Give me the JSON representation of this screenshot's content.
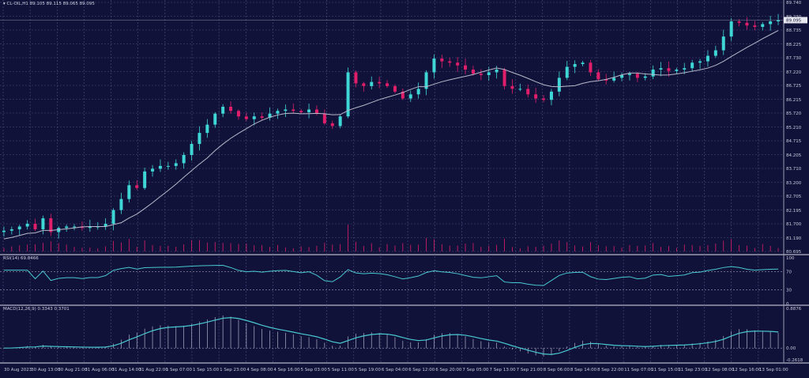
{
  "header": {
    "symbol": "CL-OIL,H1",
    "ohlc": "89.105 89.115 89.065 89.095"
  },
  "colors": {
    "background": "#11123a",
    "grid": "#4b4f80",
    "bull": "#3fd6d6",
    "bear": "#e01e6a",
    "ma": "#b8b8c8",
    "indicator": "#48c8d0"
  },
  "chart_data": [
    {
      "type": "candlestick",
      "title": "CL-OIL,H1",
      "current_price": "89.095",
      "y_ticks": [
        "89.740",
        "89.230",
        "88.735",
        "88.225",
        "87.730",
        "87.220",
        "86.725",
        "86.215",
        "85.720",
        "85.210",
        "84.715",
        "84.205",
        "83.710",
        "83.200",
        "82.705",
        "82.195",
        "81.700",
        "81.190",
        "80.695"
      ],
      "ylim": [
        80.695,
        89.74
      ],
      "x_ticks": [
        "30 Aug 2023",
        "30 Aug 13:00",
        "30 Aug 21:00",
        "31 Aug 06:00",
        "31 Aug 14:00",
        "31 Aug 22:00",
        "1 Sep 07:00",
        "1 Sep 15:00",
        "1 Sep 23:00",
        "4 Sep 08:00",
        "4 Sep 16:00",
        "5 Sep 03:00",
        "5 Sep 11:00",
        "5 Sep 19:00",
        "6 Sep 04:00",
        "6 Sep 12:00",
        "6 Sep 20:00",
        "7 Sep 05:00",
        "7 Sep 13:00",
        "7 Sep 21:00",
        "8 Sep 06:00",
        "8 Sep 14:00",
        "8 Sep 22:00",
        "11 Sep 07:00",
        "11 Sep 15:00",
        "11 Sep 23:00",
        "12 Sep 08:00",
        "12 Sep 16:00",
        "13 Sep 01:00"
      ],
      "closes": [
        81.45,
        81.5,
        81.6,
        81.7,
        81.5,
        81.9,
        81.4,
        81.55,
        81.6,
        81.6,
        81.55,
        81.6,
        81.6,
        81.7,
        82.2,
        82.6,
        83.1,
        83.0,
        83.6,
        83.7,
        83.8,
        83.8,
        83.9,
        84.2,
        84.6,
        85.0,
        85.3,
        85.7,
        85.95,
        85.8,
        85.6,
        85.5,
        85.6,
        85.55,
        85.7,
        85.8,
        85.85,
        85.8,
        85.75,
        85.85,
        85.7,
        85.35,
        85.25,
        85.6,
        87.2,
        86.8,
        86.7,
        86.85,
        86.8,
        86.7,
        86.5,
        86.25,
        86.4,
        86.6,
        87.2,
        87.7,
        87.6,
        87.55,
        87.45,
        87.3,
        87.15,
        87.1,
        87.2,
        87.3,
        86.7,
        86.6,
        86.6,
        86.4,
        86.25,
        86.2,
        86.5,
        87.0,
        87.4,
        87.5,
        87.55,
        87.2,
        86.95,
        86.9,
        87.0,
        87.1,
        87.15,
        87.0,
        87.05,
        87.3,
        87.35,
        87.25,
        87.3,
        87.35,
        87.55,
        87.6,
        87.8,
        88.0,
        88.5,
        89.05,
        89.0,
        88.9,
        88.85,
        88.95,
        89.05,
        89.095
      ],
      "moving_average": true
    },
    {
      "type": "line",
      "title": "RSI(14) 69.8466",
      "y_ticks": [
        "100",
        "70",
        "30",
        "0"
      ],
      "ylim": [
        0,
        100
      ],
      "levels": [
        70,
        30
      ]
    },
    {
      "type": "line+histogram",
      "title": "MACD(12,26,9) 0.3343 0.3701",
      "y_ticks": [
        "0.8876",
        "0.00",
        "-0.2618"
      ],
      "ylim": [
        -0.2618,
        0.8876
      ]
    }
  ]
}
